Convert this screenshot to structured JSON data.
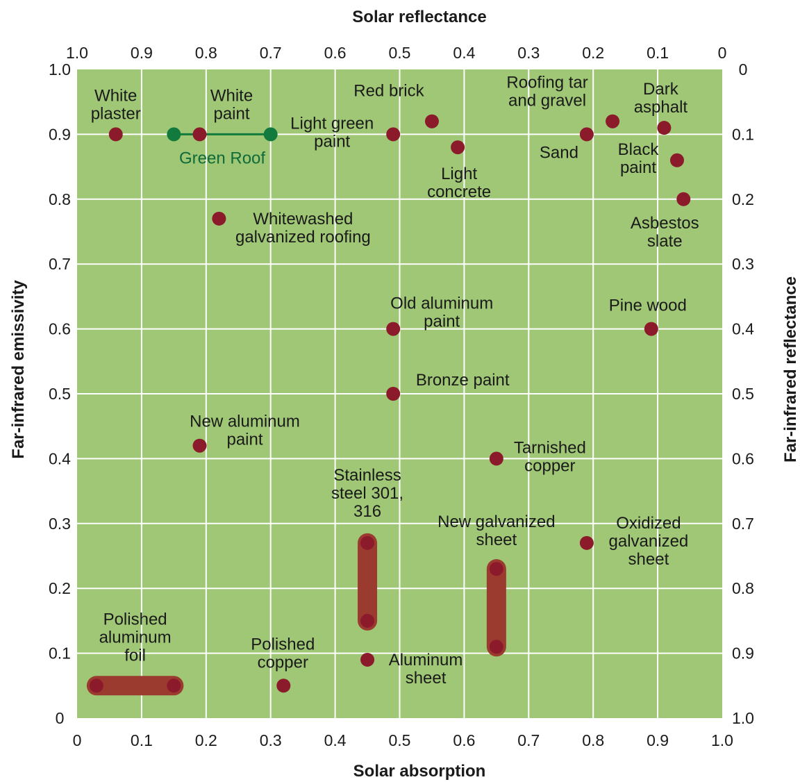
{
  "chart_data": {
    "type": "scatter",
    "title": "",
    "xlabel": "Solar absorption",
    "ylabel": "Far-infrared emissivity",
    "top_axis_label": "Solar reflectance",
    "right_axis_label": "Far-infrared reflectance",
    "xlim": [
      0,
      1.0
    ],
    "ylim": [
      0,
      1.0
    ],
    "grid": true,
    "colors": {
      "background": "#9fc775",
      "grid": "#ffffff",
      "marker": "#8b1a2b",
      "range_bar": "#9b3a2e",
      "green_roof": "#127a3c"
    },
    "ticks": {
      "bottom": [
        "0",
        "0.1",
        "0.2",
        "0.3",
        "0.4",
        "0.5",
        "0.6",
        "0.7",
        "0.8",
        "0.9",
        "1.0"
      ],
      "top": [
        "1.0",
        "0.9",
        "0.8",
        "0.7",
        "0.6",
        "0.5",
        "0.4",
        "0.3",
        "0.2",
        "0.1",
        "0"
      ],
      "left": [
        "0",
        "0.1",
        "0.2",
        "0.3",
        "0.4",
        "0.5",
        "0.6",
        "0.7",
        "0.8",
        "0.9",
        "1.0"
      ],
      "right": [
        "1.0",
        "0.9",
        "0.8",
        "0.7",
        "0.6",
        "0.5",
        "0.4",
        "0.3",
        "0.2",
        "0.1",
        "0"
      ]
    },
    "points": [
      {
        "label": [
          "White",
          "plaster"
        ],
        "x": 0.06,
        "y": 0.9
      },
      {
        "label": [
          "White",
          "paint"
        ],
        "x": 0.19,
        "y": 0.9
      },
      {
        "label": [
          "Light green",
          "paint"
        ],
        "x": 0.49,
        "y": 0.9
      },
      {
        "label": [
          "Red brick"
        ],
        "x": 0.55,
        "y": 0.92
      },
      {
        "label": [
          "Light",
          "concrete"
        ],
        "x": 0.59,
        "y": 0.88
      },
      {
        "label": [
          "Sand"
        ],
        "x": 0.79,
        "y": 0.9
      },
      {
        "label": [
          "Roofing tar",
          "and gravel"
        ],
        "x": 0.83,
        "y": 0.92
      },
      {
        "label": [
          "Dark",
          "asphalt"
        ],
        "x": 0.91,
        "y": 0.91
      },
      {
        "label": [
          "Black",
          "paint"
        ],
        "x": 0.93,
        "y": 0.86
      },
      {
        "label": [
          "Asbestos",
          "slate"
        ],
        "x": 0.94,
        "y": 0.8
      },
      {
        "label": [
          "Whitewashed",
          "galvanized roofing"
        ],
        "x": 0.22,
        "y": 0.77
      },
      {
        "label": [
          "Old aluminum",
          "paint"
        ],
        "x": 0.49,
        "y": 0.6
      },
      {
        "label": [
          "Pine wood"
        ],
        "x": 0.89,
        "y": 0.6
      },
      {
        "label": [
          "Bronze paint"
        ],
        "x": 0.49,
        "y": 0.5
      },
      {
        "label": [
          "New aluminum",
          "paint"
        ],
        "x": 0.19,
        "y": 0.42
      },
      {
        "label": [
          "Tarnished",
          "copper"
        ],
        "x": 0.65,
        "y": 0.4
      },
      {
        "label": [
          "Oxidized",
          "galvanized",
          "sheet"
        ],
        "x": 0.79,
        "y": 0.27
      },
      {
        "label": [
          "Polished",
          "copper"
        ],
        "x": 0.32,
        "y": 0.05
      },
      {
        "label": [
          "Aluminum",
          "sheet"
        ],
        "x": 0.45,
        "y": 0.09
      }
    ],
    "ranges": [
      {
        "label": [
          "Polished",
          "aluminum",
          "foil"
        ],
        "x": [
          0.03,
          0.15
        ],
        "y": [
          0.05,
          0.05
        ]
      },
      {
        "label": [
          "Stainless",
          "steel 301,",
          "316"
        ],
        "x": [
          0.45,
          0.45
        ],
        "y": [
          0.15,
          0.27
        ]
      },
      {
        "label": [
          "New galvanized",
          "sheet"
        ],
        "x": [
          0.65,
          0.65
        ],
        "y": [
          0.11,
          0.23
        ]
      }
    ],
    "green_roof": {
      "label": "Green Roof",
      "x": [
        0.15,
        0.3
      ],
      "y": 0.9
    }
  }
}
